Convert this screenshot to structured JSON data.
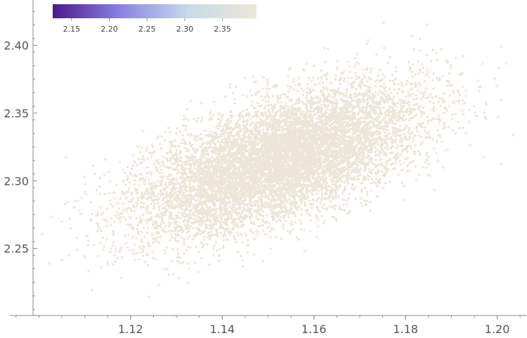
{
  "chart_data": {
    "type": "scatter",
    "title": "",
    "xlabel": "",
    "ylabel": "",
    "xlim": [
      1.0915,
      1.2065
    ],
    "ylim": [
      2.2005,
      2.4335
    ],
    "x_ticks": [
      {
        "value": 1.12,
        "label": "1.12"
      },
      {
        "value": 1.14,
        "label": "1.14"
      },
      {
        "value": 1.16,
        "label": "1.16"
      },
      {
        "value": 1.18,
        "label": "1.18"
      },
      {
        "value": 1.2,
        "label": "1.20"
      }
    ],
    "y_ticks": [
      {
        "value": 2.25,
        "label": "2.25"
      },
      {
        "value": 2.3,
        "label": "2.30"
      },
      {
        "value": 2.35,
        "label": "2.35"
      },
      {
        "value": 2.4,
        "label": "2.40"
      }
    ],
    "color_encoding": "x + y",
    "colorbar": {
      "range": [
        2.125,
        2.395
      ],
      "ticks": [
        {
          "value": 2.15,
          "label": "2.15"
        },
        {
          "value": 2.2,
          "label": "2.20"
        },
        {
          "value": 2.25,
          "label": "2.25"
        },
        {
          "value": 2.3,
          "label": "2.30"
        },
        {
          "value": 2.35,
          "label": "2.35"
        }
      ],
      "colors": [
        "#4b1a8c",
        "#8a82e6",
        "#c7dbe8",
        "#ece6d8"
      ]
    },
    "distribution": {
      "point_count": 9000,
      "x_mean": 1.152,
      "x_sd": 0.0155,
      "y_mean": 2.315,
      "y_sd": 0.0275,
      "correlation": 0.62
    },
    "grid": false,
    "legend": "colorbar top-left"
  }
}
